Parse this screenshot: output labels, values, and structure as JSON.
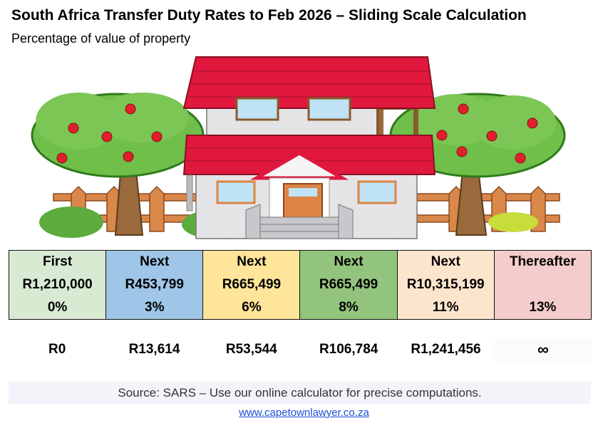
{
  "header": {
    "title": "South Africa Transfer Duty Rates to Feb 2026 – Sliding Scale Calculation",
    "subtitle": "Percentage of value of property"
  },
  "illustration": {
    "subject": "house-with-apple-trees"
  },
  "brackets": [
    {
      "label": "First",
      "amount": "R1,210,000",
      "rate": "0%",
      "color": "#d9ead3"
    },
    {
      "label": "Next",
      "amount": "R453,799",
      "rate": "3%",
      "color": "#9fc5e8"
    },
    {
      "label": "Next",
      "amount": "R665,499",
      "rate": "6%",
      "color": "#ffe599"
    },
    {
      "label": "Next",
      "amount": "R665,499",
      "rate": "8%",
      "color": "#93c47d"
    },
    {
      "label": "Next",
      "amount": "R10,315,199",
      "rate": "11%",
      "color": "#fce5cd"
    },
    {
      "label": "Thereafter",
      "amount": "",
      "rate": "13%",
      "color": "#f4cccc"
    }
  ],
  "cumulative": [
    "R0",
    "R13,614",
    "R53,544",
    "R106,784",
    "R1,241,456",
    "∞"
  ],
  "footer": {
    "source": "Source: SARS – Use our online calculator for precise computations.",
    "link": "www.capetownlawyer.co.za"
  }
}
